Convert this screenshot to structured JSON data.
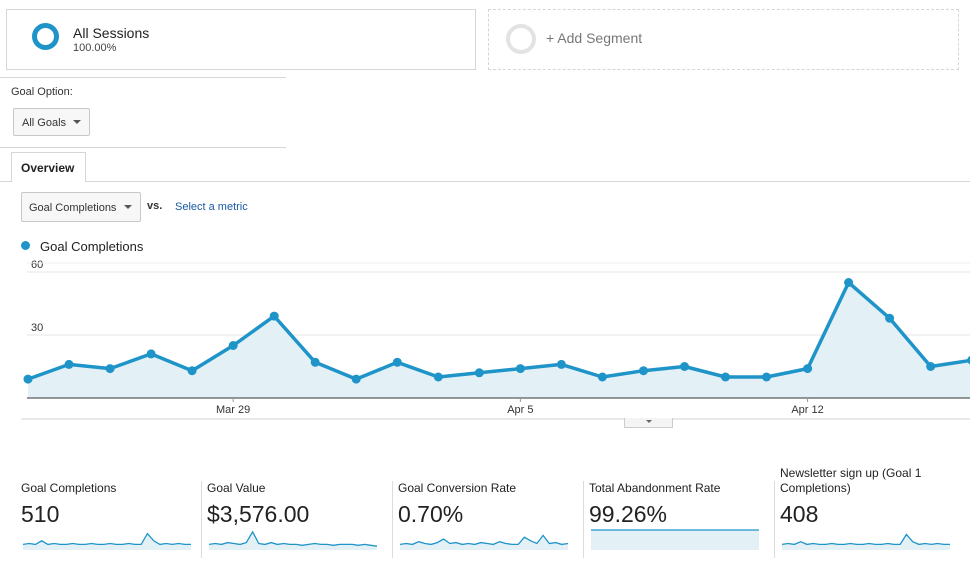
{
  "segments": {
    "active": {
      "name": "All Sessions",
      "percent": "100.00%"
    },
    "add_label": "+ Add Segment"
  },
  "goal_option": {
    "label": "Goal Option:",
    "selected": "All Goals"
  },
  "tabs": [
    {
      "label": "Overview"
    }
  ],
  "chart_controls": {
    "metric_selected": "Goal Completions",
    "vs_label": "vs.",
    "select_metric_link": "Select a metric"
  },
  "chart_data": {
    "type": "area",
    "series": [
      {
        "name": "Goal Completions",
        "values": [
          9,
          16,
          14,
          21,
          13,
          25,
          39,
          17,
          9,
          17,
          10,
          12,
          14,
          16,
          10,
          13,
          15,
          10,
          10,
          14,
          55,
          38,
          15,
          18
        ]
      }
    ],
    "x_tick_labels": [
      {
        "index": 5,
        "label": "Mar 29"
      },
      {
        "index": 12,
        "label": "Apr 5"
      },
      {
        "index": 19,
        "label": "Apr 12"
      }
    ],
    "y_ticks": [
      30,
      60
    ],
    "ylim": [
      0,
      60
    ],
    "color": "#1f94c8",
    "fill": "#e3f1f7",
    "grid": true
  },
  "metrics": [
    {
      "label": "Goal Completions",
      "value": "510",
      "spark": [
        4,
        5,
        4,
        8,
        4,
        5,
        4,
        4,
        5,
        4,
        4,
        5,
        4,
        4,
        5,
        4,
        4,
        5,
        4,
        4,
        16,
        8,
        4,
        5,
        4,
        5,
        4,
        4
      ]
    },
    {
      "label": "Goal Value",
      "value": "$3,576.00",
      "spark": [
        4,
        5,
        4,
        6,
        5,
        4,
        6,
        18,
        5,
        4,
        6,
        4,
        5,
        4,
        4,
        3,
        4,
        5,
        4,
        4,
        3,
        4,
        4,
        4,
        3,
        4,
        3,
        2
      ]
    },
    {
      "label": "Goal Conversion Rate",
      "value": "0.70%",
      "spark": [
        4,
        5,
        4,
        7,
        5,
        4,
        6,
        10,
        5,
        6,
        4,
        5,
        4,
        6,
        5,
        4,
        7,
        5,
        4,
        4,
        12,
        8,
        5,
        14,
        5,
        6,
        4,
        5
      ]
    },
    {
      "label": "Total Abandonment Rate",
      "value": "99.26%",
      "spark": [
        20,
        20,
        20,
        20,
        20,
        20,
        20,
        20,
        20,
        20,
        20,
        20,
        20,
        20,
        20,
        20,
        20,
        20,
        20,
        20,
        20,
        20,
        20,
        20,
        20,
        20,
        20,
        20
      ]
    },
    {
      "label": "Newsletter sign up (Goal 1 Completions)",
      "value": "408",
      "spark": [
        4,
        5,
        4,
        7,
        4,
        5,
        4,
        4,
        5,
        4,
        4,
        5,
        4,
        4,
        5,
        4,
        4,
        5,
        4,
        4,
        15,
        7,
        4,
        5,
        4,
        5,
        4,
        4
      ]
    }
  ],
  "colors": {
    "accent": "#1f94c8",
    "link": "#1a5aa8",
    "border": "#d6d6d6"
  }
}
